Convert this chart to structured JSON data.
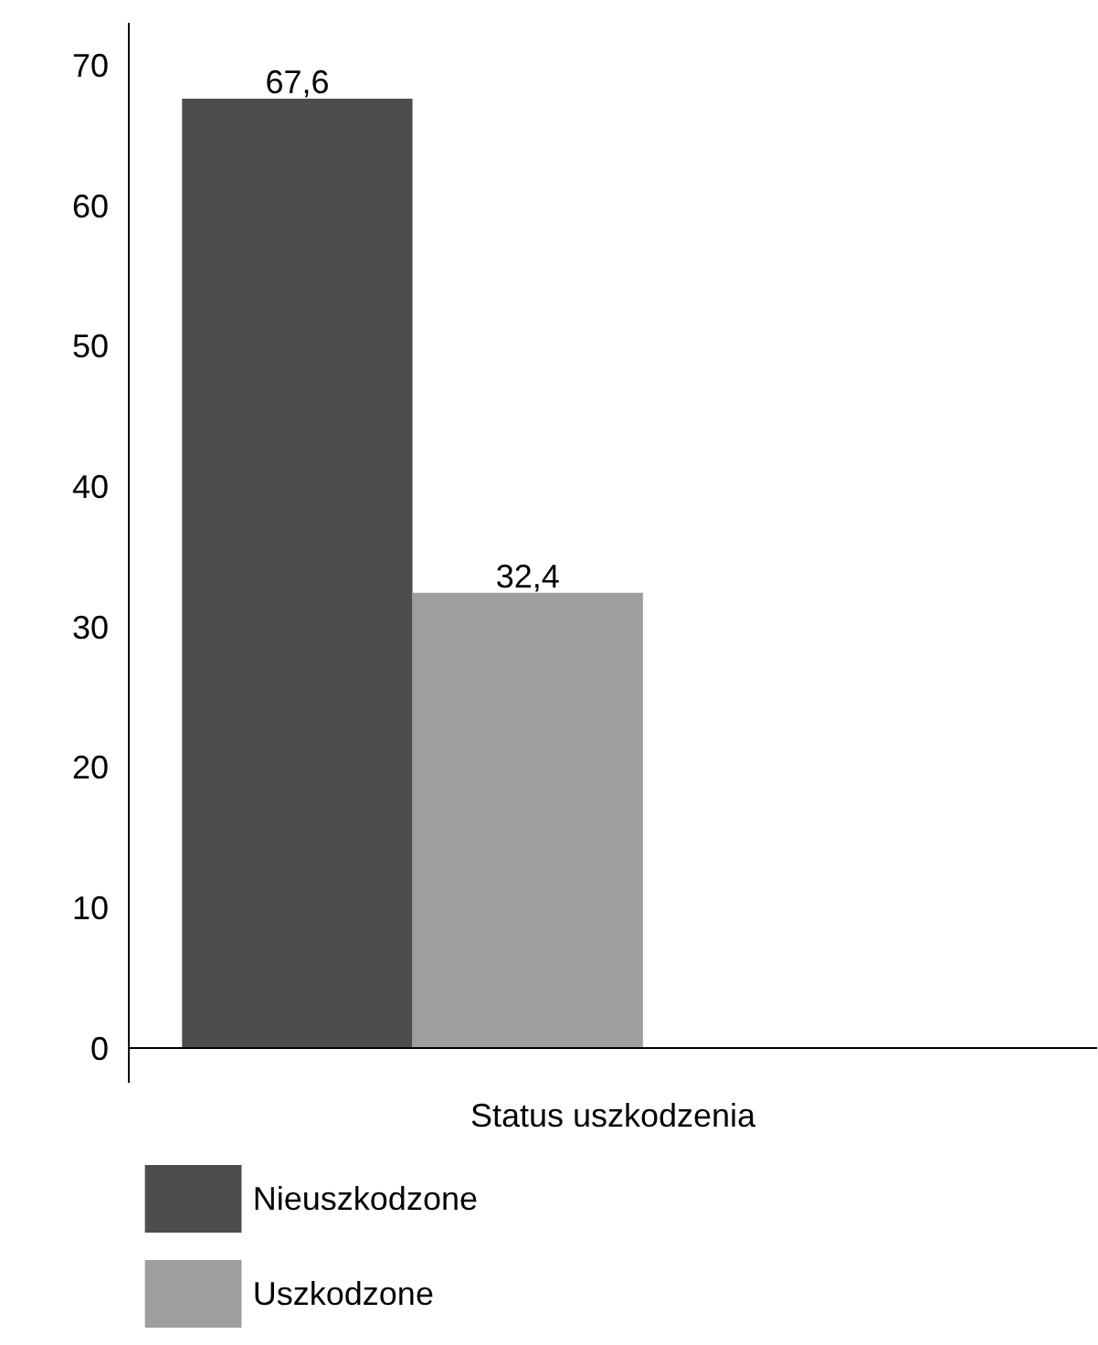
{
  "chart_data": {
    "type": "bar",
    "categories": [
      "Status uszkodzenia"
    ],
    "series": [
      {
        "name": "Nieuszkodzone",
        "color": "#4d4d4d",
        "values": [
          67.6
        ],
        "value_labels": [
          "67,6"
        ]
      },
      {
        "name": "Uszkodzone",
        "color": "#9e9e9e",
        "values": [
          32.4
        ],
        "value_labels": [
          "32,4"
        ]
      }
    ],
    "ylim": [
      -2.5,
      73
    ],
    "yticks": [
      0,
      10,
      20,
      30,
      40,
      50,
      60,
      70
    ],
    "legend": "bottom"
  }
}
